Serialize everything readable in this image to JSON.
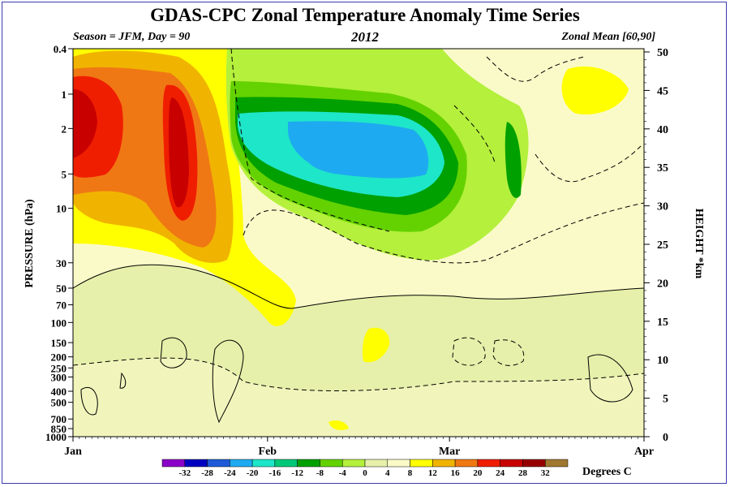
{
  "title": "GDAS-CPC Zonal Temperature Anomaly Time Series",
  "subtitle_left": "Season = JFM, Day =  90",
  "subtitle_center": "2012",
  "subtitle_right": "Zonal Mean [60,90]",
  "chart_data": {
    "type": "heatmap",
    "title": "GDAS-CPC Zonal Temperature Anomaly Time Series",
    "xlabel": "",
    "ylabel": "PRESSURE (hPa)",
    "ylabel_right": "HEIGHT *km",
    "x_ticks": [
      "Jan",
      "Feb",
      "Mar",
      "Apr"
    ],
    "y_ticks_pressure": [
      "0.4",
      "1",
      "2",
      "5",
      "10",
      "30",
      "50",
      "70",
      "100",
      "150",
      "200",
      "250",
      "300",
      "400",
      "500",
      "700",
      "850",
      "1000"
    ],
    "y_ticks_height": [
      "0",
      "5",
      "10",
      "15",
      "20",
      "25",
      "30",
      "35",
      "40",
      "45",
      "50"
    ],
    "y_scale": "log",
    "colorbar_label": "Degrees C",
    "colorbar_ticks": [
      "-32",
      "-28",
      "-24",
      "-20",
      "-16",
      "-12",
      "-8",
      "-4",
      "0",
      "4",
      "8",
      "12",
      "16",
      "20",
      "24",
      "28",
      "32"
    ],
    "colorbar_colors": [
      "#8a00c8",
      "#0000c0",
      "#1e5ad8",
      "#1eaaf0",
      "#1ee6c8",
      "#00c878",
      "#00a000",
      "#64d200",
      "#b4f03c",
      "#e6f0aa",
      "#fafac8",
      "#ffff00",
      "#f0b400",
      "#f07814",
      "#f01e00",
      "#c80000",
      "#960000",
      "#a07830"
    ],
    "colorbar_colors_note": "",
    "features": [
      {
        "x": "Jan 1-4",
        "pressure_hPa": "1-5",
        "value_c": 20
      },
      {
        "x": "Jan 10-12",
        "pressure_hPa": "1-10",
        "value_c": 20
      },
      {
        "x": "Feb 5-20",
        "pressure_hPa": "2-5",
        "value_c": -20
      },
      {
        "x": "Mar 20-28",
        "pressure_hPa": "1",
        "value_c": 4
      }
    ]
  }
}
